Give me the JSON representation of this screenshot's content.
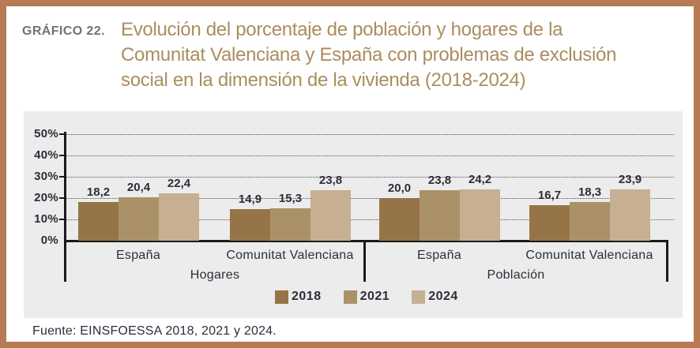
{
  "figure": {
    "label": "GRÁFICO 22.",
    "title_lines": [
      "Evolución del porcentaje de población y hogares de la",
      "Comunitat Valenciana y España con problemas de exclusión",
      "social en la dimensión de la vivienda (2018-2024)"
    ],
    "source": "Fuente: EINSFOESSA 2018, 2021 y 2024."
  },
  "colors": {
    "frame_border": "#b87a54",
    "panel_background": "#ececec",
    "axis": "#1a1a1a",
    "text_dark": "#2d2d3b",
    "title_text": "#ab8d5f",
    "figure_label_text": "#70707a",
    "series_2018": "#957548",
    "series_2021": "#ab9168",
    "series_2024": "#c6b091"
  },
  "chart_data": {
    "type": "bar",
    "title": "Evolución del porcentaje de población y hogares de la Comunitat Valenciana y España con problemas de exclusión social en la dimensión de la vivienda (2018-2024)",
    "xlabel": "",
    "ylabel": "",
    "ylim": [
      0,
      50
    ],
    "yticks": [
      0,
      10,
      20,
      30,
      40,
      50
    ],
    "ytick_suffix": "%",
    "grid": "dotted-horizontal",
    "legend_position": "bottom",
    "series": [
      "2018",
      "2021",
      "2024"
    ],
    "series_colors": [
      "#957548",
      "#ab9168",
      "#c6b091"
    ],
    "groups": [
      {
        "region": "España",
        "section": "Hogares",
        "values": [
          18.2,
          20.4,
          22.4
        ],
        "value_labels": [
          "18,2",
          "20,4",
          "22,4"
        ]
      },
      {
        "region": "Comunitat Valenciana",
        "section": "Hogares",
        "values": [
          14.9,
          15.3,
          23.8
        ],
        "value_labels": [
          "14,9",
          "15,3",
          "23,8"
        ]
      },
      {
        "region": "España",
        "section": "Población",
        "values": [
          20.0,
          23.8,
          24.2
        ],
        "value_labels": [
          "20,0",
          "23,8",
          "24,2"
        ]
      },
      {
        "region": "Comunitat Valenciana",
        "section": "Población",
        "values": [
          16.7,
          18.3,
          23.9
        ],
        "value_labels": [
          "16,7",
          "18,3",
          "23,9"
        ]
      }
    ],
    "sections": [
      "Hogares",
      "Población"
    ]
  }
}
